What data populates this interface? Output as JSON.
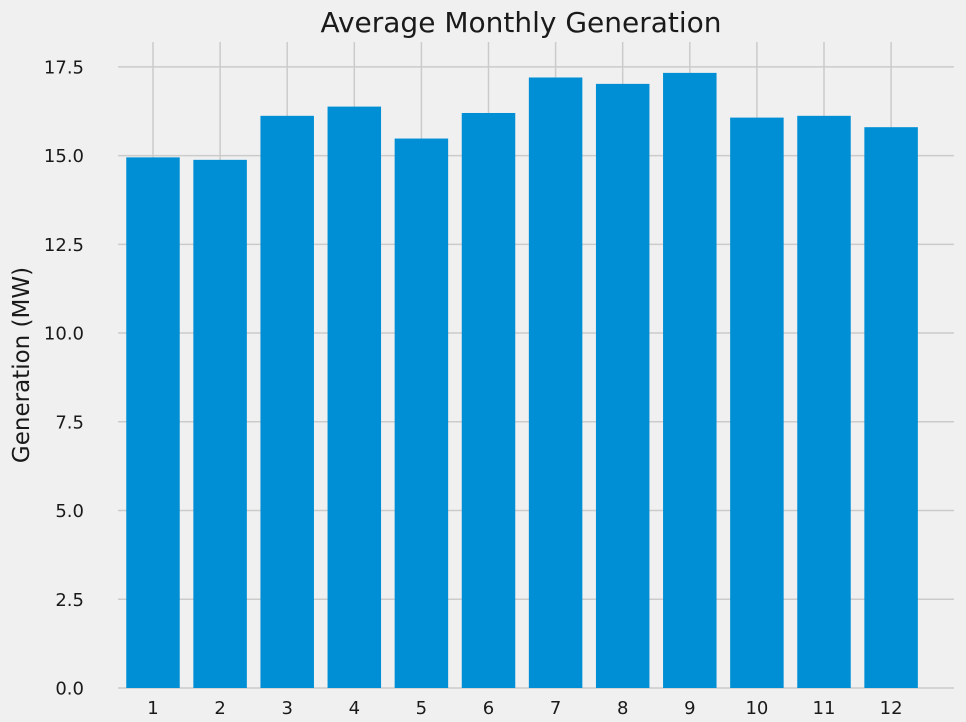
{
  "chart_data": {
    "type": "bar",
    "title": "Average Monthly Generation",
    "xlabel": "",
    "ylabel": "Generation (MW)",
    "categories": [
      "1",
      "2",
      "3",
      "4",
      "5",
      "6",
      "7",
      "8",
      "9",
      "10",
      "11",
      "12"
    ],
    "values": [
      14.95,
      14.88,
      16.12,
      16.38,
      15.48,
      16.2,
      17.2,
      17.02,
      17.33,
      16.07,
      16.12,
      15.8
    ],
    "ylim": [
      0,
      18.2
    ],
    "yticks": [
      "0.0",
      "2.5",
      "5.0",
      "7.5",
      "10.0",
      "12.5",
      "15.0",
      "17.5"
    ],
    "grid": true,
    "bar_color": "#008fd5",
    "background_color": "#f0f0f0",
    "grid_color": "#cbcbcb"
  }
}
